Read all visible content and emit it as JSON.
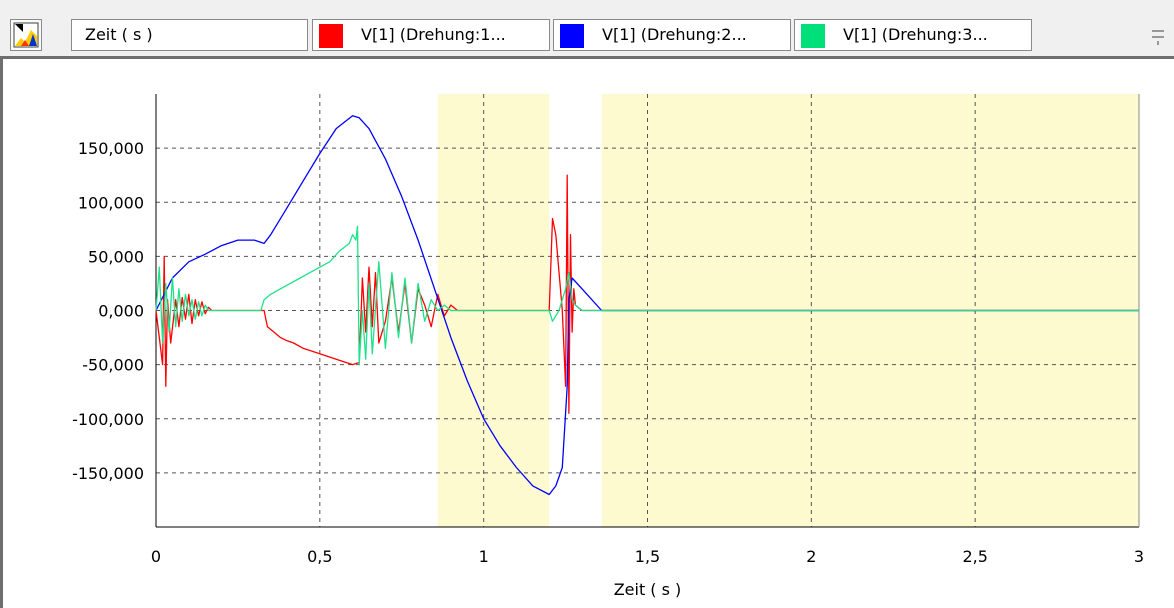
{
  "toolbar": {
    "icon": "chart-color-icon",
    "x_field": "Zeit ( s )",
    "legend": [
      {
        "label": "V[1] (Drehung:1...",
        "color": "#ff0000"
      },
      {
        "label": "V[1] (Drehung:2...",
        "color": "#0000ff"
      },
      {
        "label": "V[1] (Drehung:3...",
        "color": "#00e07a"
      }
    ],
    "grip_icon": "splitter-grip-icon"
  },
  "chart_data": {
    "type": "line",
    "xlabel": "Zeit ( s )",
    "ylabel": "",
    "xlim": [
      0,
      3
    ],
    "ylim": [
      -200000,
      200000
    ],
    "x_ticks": [
      0,
      0.5,
      1,
      1.5,
      2,
      2.5,
      3
    ],
    "x_tick_labels": [
      "0",
      "0,5",
      "1",
      "1,5",
      "2",
      "2,5",
      "3"
    ],
    "y_ticks": [
      150000,
      100000,
      50000,
      0,
      -50000,
      -100000,
      -150000
    ],
    "y_tick_labels": [
      "150,000",
      "100,000",
      "50,000",
      "0,000",
      "-50,000",
      "-100,000",
      "-150,000"
    ],
    "grid": true,
    "highlight_bands": [
      [
        0.86,
        1.2
      ],
      [
        1.36,
        3.0
      ]
    ],
    "band_color": "#fdfad0",
    "series": [
      {
        "name": "V[1] (Drehung:1...",
        "color": "#ff0000",
        "x": [
          0,
          0.02,
          0.025,
          0.03,
          0.035,
          0.045,
          0.06,
          0.07,
          0.08,
          0.09,
          0.1,
          0.11,
          0.12,
          0.13,
          0.14,
          0.15,
          0.16,
          0.17,
          0.18,
          0.2,
          0.25,
          0.33,
          0.34,
          0.36,
          0.38,
          0.4,
          0.42,
          0.45,
          0.5,
          0.55,
          0.6,
          0.62,
          0.63,
          0.64,
          0.65,
          0.66,
          0.67,
          0.68,
          0.7,
          0.72,
          0.74,
          0.76,
          0.78,
          0.8,
          0.82,
          0.84,
          0.86,
          0.88,
          0.9,
          0.92,
          0.95,
          1.0,
          1.2,
          1.21,
          1.22,
          1.24,
          1.25,
          1.255,
          1.26,
          1.265,
          1.27,
          1.275,
          1.28,
          1.3,
          1.35,
          1.5,
          2.0,
          3.0
        ],
        "values": [
          0,
          -50000,
          50000,
          -70000,
          10000,
          -30000,
          10000,
          -15000,
          12000,
          -8000,
          15000,
          -12000,
          10000,
          -5000,
          8000,
          -3000,
          3000,
          0,
          0,
          0,
          0,
          0,
          -15000,
          -20000,
          -25000,
          -28000,
          -30000,
          -35000,
          -40000,
          -45000,
          -50000,
          -48000,
          30000,
          -20000,
          40000,
          -15000,
          35000,
          -30000,
          -10000,
          30000,
          -20000,
          25000,
          -30000,
          20000,
          5000,
          -15000,
          15000,
          -5000,
          5000,
          0,
          0,
          0,
          0,
          85000,
          70000,
          0,
          -70000,
          125000,
          -95000,
          70000,
          -20000,
          20000,
          5000,
          0,
          0,
          0,
          0,
          0
        ]
      },
      {
        "name": "V[1] (Drehung:2...",
        "color": "#0000ff",
        "x": [
          0,
          0.05,
          0.1,
          0.15,
          0.2,
          0.25,
          0.3,
          0.33,
          0.35,
          0.4,
          0.45,
          0.5,
          0.55,
          0.6,
          0.62,
          0.65,
          0.7,
          0.75,
          0.8,
          0.85,
          0.9,
          0.95,
          1.0,
          1.05,
          1.1,
          1.15,
          1.2,
          1.22,
          1.24,
          1.255,
          1.26,
          1.27,
          1.3,
          1.36,
          1.5,
          2.0,
          3.0
        ],
        "values": [
          0,
          30000,
          45000,
          52000,
          60000,
          65000,
          65000,
          62000,
          70000,
          95000,
          120000,
          145000,
          168000,
          180000,
          178000,
          168000,
          140000,
          105000,
          65000,
          20000,
          -25000,
          -65000,
          -100000,
          -125000,
          -145000,
          -162000,
          -170000,
          -162000,
          -145000,
          -70000,
          10000,
          30000,
          20000,
          0,
          0,
          0,
          0
        ]
      },
      {
        "name": "V[1] (Drehung:3...",
        "color": "#1ee28a",
        "x": [
          0,
          0.01,
          0.02,
          0.03,
          0.04,
          0.05,
          0.06,
          0.07,
          0.08,
          0.09,
          0.1,
          0.11,
          0.12,
          0.13,
          0.14,
          0.15,
          0.16,
          0.18,
          0.2,
          0.25,
          0.32,
          0.33,
          0.35,
          0.38,
          0.41,
          0.44,
          0.47,
          0.5,
          0.53,
          0.56,
          0.59,
          0.6,
          0.61,
          0.615,
          0.62,
          0.63,
          0.64,
          0.65,
          0.66,
          0.68,
          0.7,
          0.72,
          0.74,
          0.76,
          0.78,
          0.8,
          0.82,
          0.84,
          0.86,
          0.88,
          0.9,
          0.92,
          0.94,
          0.96,
          1.0,
          1.2,
          1.21,
          1.23,
          1.25,
          1.26,
          1.27,
          1.28,
          1.3,
          1.36,
          1.5,
          2.0,
          3.0
        ],
        "values": [
          0,
          40000,
          -30000,
          25000,
          -20000,
          30000,
          -15000,
          20000,
          -10000,
          15000,
          -5000,
          10000,
          -8000,
          8000,
          -5000,
          5000,
          0,
          0,
          0,
          0,
          0,
          10000,
          15000,
          20000,
          25000,
          30000,
          35000,
          40000,
          45000,
          55000,
          62000,
          70000,
          65000,
          78000,
          -50000,
          0,
          -45000,
          25000,
          -40000,
          45000,
          -35000,
          35000,
          -25000,
          30000,
          -30000,
          25000,
          -10000,
          10000,
          0,
          5000,
          0,
          0,
          0,
          0,
          0,
          0,
          -10000,
          0,
          20000,
          35000,
          10000,
          5000,
          0,
          0,
          0,
          0,
          0
        ]
      }
    ]
  }
}
